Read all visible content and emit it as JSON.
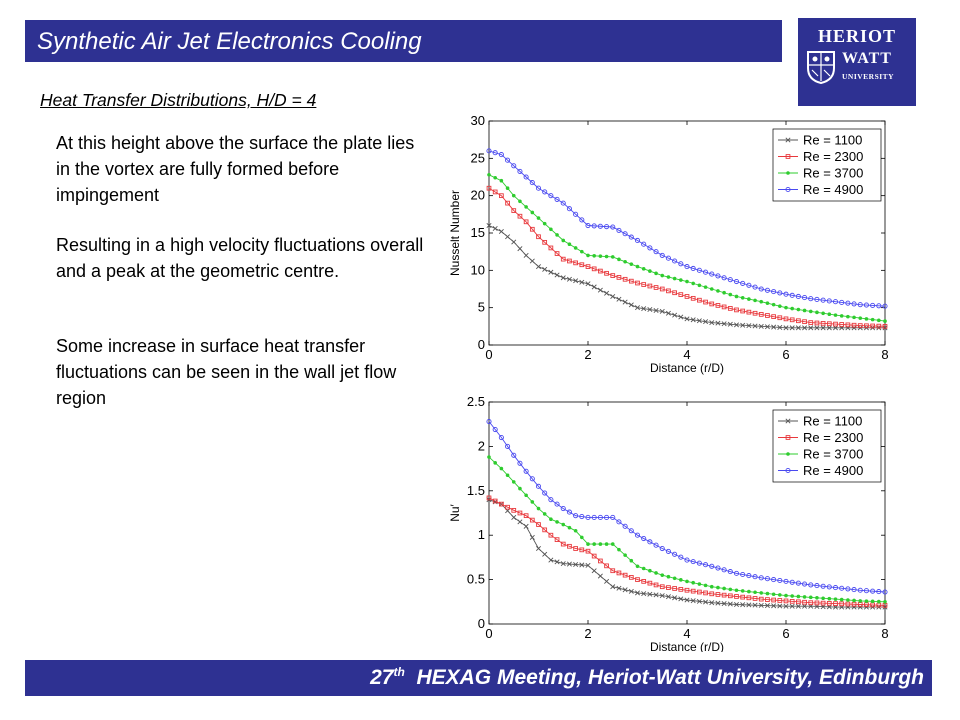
{
  "header": {
    "title": "Synthetic Air Jet Electronics Cooling"
  },
  "logo": {
    "line1": "HERIOT",
    "line2": "WATT",
    "line3": "UNIVERSITY"
  },
  "content": {
    "subtitle": "Heat Transfer Distributions, H/D = 4",
    "paragraphs": [
      "At this height above the surface the plate lies in the vortex are fully formed before impingement",
      "Resulting in a high velocity fluctuations overall and a peak at the geometric centre.",
      "Some increase in surface heat transfer fluctuations can be seen in the wall jet flow region"
    ]
  },
  "footer": {
    "ordinal": "27",
    "ordinal_suffix": "th",
    "text": "HEXAG Meeting, Heriot-Watt University, Edinburgh"
  },
  "colors": {
    "brand": "#2e3192",
    "series": [
      "#555555",
      "#e8383c",
      "#2ecc2e",
      "#4a4af0"
    ]
  },
  "chart_data": [
    {
      "type": "line",
      "xlabel": "Distance (r/D)",
      "ylabel": "Nusselt Number",
      "xlim": [
        0,
        8
      ],
      "ylim": [
        0,
        30
      ],
      "xticks": [
        0,
        2,
        4,
        6,
        8
      ],
      "yticks": [
        0,
        5,
        10,
        15,
        20,
        25,
        30
      ],
      "legend_position": "top-right",
      "x": [
        0,
        0.25,
        0.5,
        0.75,
        1,
        1.5,
        2,
        2.5,
        3,
        3.5,
        4,
        4.5,
        5,
        5.5,
        6,
        6.5,
        7,
        7.5,
        8
      ],
      "series": [
        {
          "name": "Re = 1100",
          "marker": "x",
          "values": [
            16.0,
            15.2,
            13.8,
            12.0,
            10.5,
            9.0,
            8.2,
            6.5,
            5.0,
            4.5,
            3.5,
            3.0,
            2.7,
            2.5,
            2.3,
            2.3,
            2.3,
            2.3,
            2.3
          ]
        },
        {
          "name": "Re = 2300",
          "marker": "square",
          "values": [
            21.0,
            20.0,
            18.0,
            16.5,
            14.5,
            11.5,
            10.5,
            9.3,
            8.3,
            7.5,
            6.5,
            5.5,
            4.7,
            4.1,
            3.5,
            3.0,
            2.8,
            2.6,
            2.5
          ]
        },
        {
          "name": "Re = 3700",
          "marker": "dot",
          "values": [
            22.8,
            22.0,
            20.0,
            18.5,
            17.0,
            14.0,
            12.0,
            11.8,
            10.5,
            9.3,
            8.5,
            7.5,
            6.5,
            5.8,
            5.0,
            4.5,
            4.0,
            3.6,
            3.2
          ]
        },
        {
          "name": "Re = 4900",
          "marker": "circle",
          "values": [
            26.0,
            25.5,
            24.0,
            22.5,
            21.0,
            19.0,
            16.0,
            15.8,
            14.0,
            12.0,
            10.5,
            9.5,
            8.5,
            7.5,
            6.8,
            6.2,
            5.8,
            5.4,
            5.2
          ]
        }
      ]
    },
    {
      "type": "line",
      "xlabel": "Distance (r/D)",
      "ylabel": "Nu′",
      "xlim": [
        0,
        8
      ],
      "ylim": [
        0,
        2.5
      ],
      "xticks": [
        0,
        2,
        4,
        6,
        8
      ],
      "yticks": [
        0,
        0.5,
        1,
        1.5,
        2,
        2.5
      ],
      "legend_position": "top-right",
      "x": [
        0,
        0.25,
        0.5,
        0.75,
        1,
        1.25,
        1.5,
        1.75,
        2,
        2.5,
        3,
        3.5,
        4,
        4.5,
        5,
        5.5,
        6,
        6.5,
        7,
        7.5,
        8
      ],
      "series": [
        {
          "name": "Re = 1100",
          "marker": "x",
          "values": [
            1.4,
            1.35,
            1.2,
            1.1,
            0.85,
            0.72,
            0.68,
            0.67,
            0.66,
            0.42,
            0.35,
            0.32,
            0.27,
            0.24,
            0.22,
            0.21,
            0.2,
            0.2,
            0.19,
            0.19,
            0.19
          ]
        },
        {
          "name": "Re = 2300",
          "marker": "square",
          "values": [
            1.42,
            1.35,
            1.28,
            1.22,
            1.12,
            1.0,
            0.9,
            0.85,
            0.82,
            0.6,
            0.5,
            0.42,
            0.38,
            0.34,
            0.31,
            0.28,
            0.26,
            0.24,
            0.23,
            0.22,
            0.21
          ]
        },
        {
          "name": "Re = 3700",
          "marker": "dot",
          "values": [
            1.88,
            1.75,
            1.6,
            1.45,
            1.3,
            1.18,
            1.12,
            1.05,
            0.9,
            0.9,
            0.65,
            0.55,
            0.48,
            0.42,
            0.38,
            0.35,
            0.32,
            0.3,
            0.28,
            0.26,
            0.25
          ]
        },
        {
          "name": "Re = 4900",
          "marker": "circle",
          "values": [
            2.28,
            2.1,
            1.9,
            1.72,
            1.55,
            1.4,
            1.3,
            1.22,
            1.2,
            1.2,
            1.0,
            0.85,
            0.72,
            0.65,
            0.57,
            0.52,
            0.48,
            0.44,
            0.41,
            0.38,
            0.36
          ]
        }
      ]
    }
  ]
}
